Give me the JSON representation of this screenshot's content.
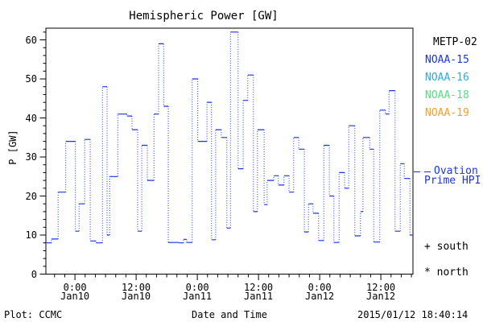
{
  "title": "Hemispheric Power [GW]",
  "footer": {
    "credit": "Plot: CCMC",
    "xlabel": "Date and Time",
    "timestamp": "2015/01/12 18:40:14"
  },
  "legend": {
    "satellites": [
      {
        "label": "METP-02",
        "color": "#000000"
      },
      {
        "label": "NOAA-15",
        "color": "#1a35e0"
      },
      {
        "label": "NOAA-16",
        "color": "#29abe2"
      },
      {
        "label": "NOAA-18",
        "color": "#55dd82"
      },
      {
        "label": "NOAA-19",
        "color": "#ff9e26"
      }
    ],
    "line_label": {
      "line1": "Ovation",
      "line2": "Prime HPI",
      "color": "#1a35e0"
    },
    "markers": [
      {
        "symbol": "+",
        "label": "south"
      },
      {
        "symbol": "*",
        "label": "north"
      }
    ]
  },
  "chart_data": {
    "type": "line",
    "title": "Hemispheric Power [GW]",
    "xlabel": "Date and Time",
    "ylabel": "P [GW]",
    "ylim": [
      0,
      63
    ],
    "y_major_ticks": [
      0,
      10,
      20,
      30,
      40,
      50,
      60
    ],
    "y_minor_step": 2,
    "x_total_hours": 72,
    "x_minor_step_hours": 2,
    "x_minor_start_hour": 1.7,
    "x_major_ticks": [
      {
        "hour": 5.7,
        "time": "0:00",
        "date": "Jan10"
      },
      {
        "hour": 17.7,
        "time": "12:00",
        "date": "Jan10"
      },
      {
        "hour": 29.7,
        "time": "0:00",
        "date": "Jan11"
      },
      {
        "hour": 41.7,
        "time": "12:00",
        "date": "Jan11"
      },
      {
        "hour": 53.7,
        "time": "0:00",
        "date": "Jan12"
      },
      {
        "hour": 65.7,
        "time": "12:00",
        "date": "Jan12"
      }
    ],
    "grid": false,
    "legend_position": "right-outside",
    "series": [
      {
        "name": "Ovation Prime HPI",
        "color": "#1a35e0",
        "line_style": "dotted-step",
        "steps_hour_gw": [
          [
            0,
            8
          ],
          [
            1.1,
            9
          ],
          [
            2.4,
            21
          ],
          [
            3.9,
            34
          ],
          [
            5.8,
            11
          ],
          [
            6.5,
            18
          ],
          [
            7.6,
            34.5
          ],
          [
            8.7,
            8.5
          ],
          [
            9.8,
            8
          ],
          [
            11.1,
            48
          ],
          [
            12,
            10
          ],
          [
            12.5,
            25
          ],
          [
            14.1,
            41
          ],
          [
            15.9,
            40.5
          ],
          [
            16.9,
            37
          ],
          [
            18,
            11
          ],
          [
            18.8,
            33
          ],
          [
            19.9,
            24
          ],
          [
            21.2,
            41
          ],
          [
            22.1,
            59
          ],
          [
            23.1,
            43
          ],
          [
            24,
            8.1
          ],
          [
            26.1,
            8
          ],
          [
            27,
            8.9
          ],
          [
            27.6,
            8.1
          ],
          [
            28.7,
            50
          ],
          [
            29.8,
            34
          ],
          [
            31.6,
            44
          ],
          [
            32.5,
            8.8
          ],
          [
            33.3,
            37
          ],
          [
            34.4,
            35
          ],
          [
            35.5,
            11.8
          ],
          [
            36.2,
            62
          ],
          [
            37.7,
            27
          ],
          [
            38.7,
            44.5
          ],
          [
            39.6,
            51
          ],
          [
            40.7,
            16
          ],
          [
            41.5,
            37
          ],
          [
            42.8,
            17.8
          ],
          [
            43.4,
            24
          ],
          [
            44.7,
            25.2
          ],
          [
            45.6,
            22.8
          ],
          [
            46.7,
            25.2
          ],
          [
            47.7,
            21
          ],
          [
            48.6,
            35
          ],
          [
            49.6,
            32
          ],
          [
            50.7,
            10.8
          ],
          [
            51.5,
            18
          ],
          [
            52.4,
            15.6
          ],
          [
            53.5,
            8.6
          ],
          [
            54.5,
            33
          ],
          [
            55.6,
            20
          ],
          [
            56.5,
            8.1
          ],
          [
            57.5,
            26
          ],
          [
            58.6,
            22
          ],
          [
            59.4,
            38
          ],
          [
            60.6,
            9.8
          ],
          [
            61.7,
            16
          ],
          [
            62.2,
            35
          ],
          [
            63.5,
            32
          ],
          [
            64.3,
            8.2
          ],
          [
            65.5,
            42
          ],
          [
            66.6,
            41
          ],
          [
            67.3,
            47
          ],
          [
            68.5,
            11
          ],
          [
            69.5,
            28.3
          ],
          [
            70.3,
            24.5
          ],
          [
            71.4,
            10
          ]
        ]
      }
    ]
  }
}
